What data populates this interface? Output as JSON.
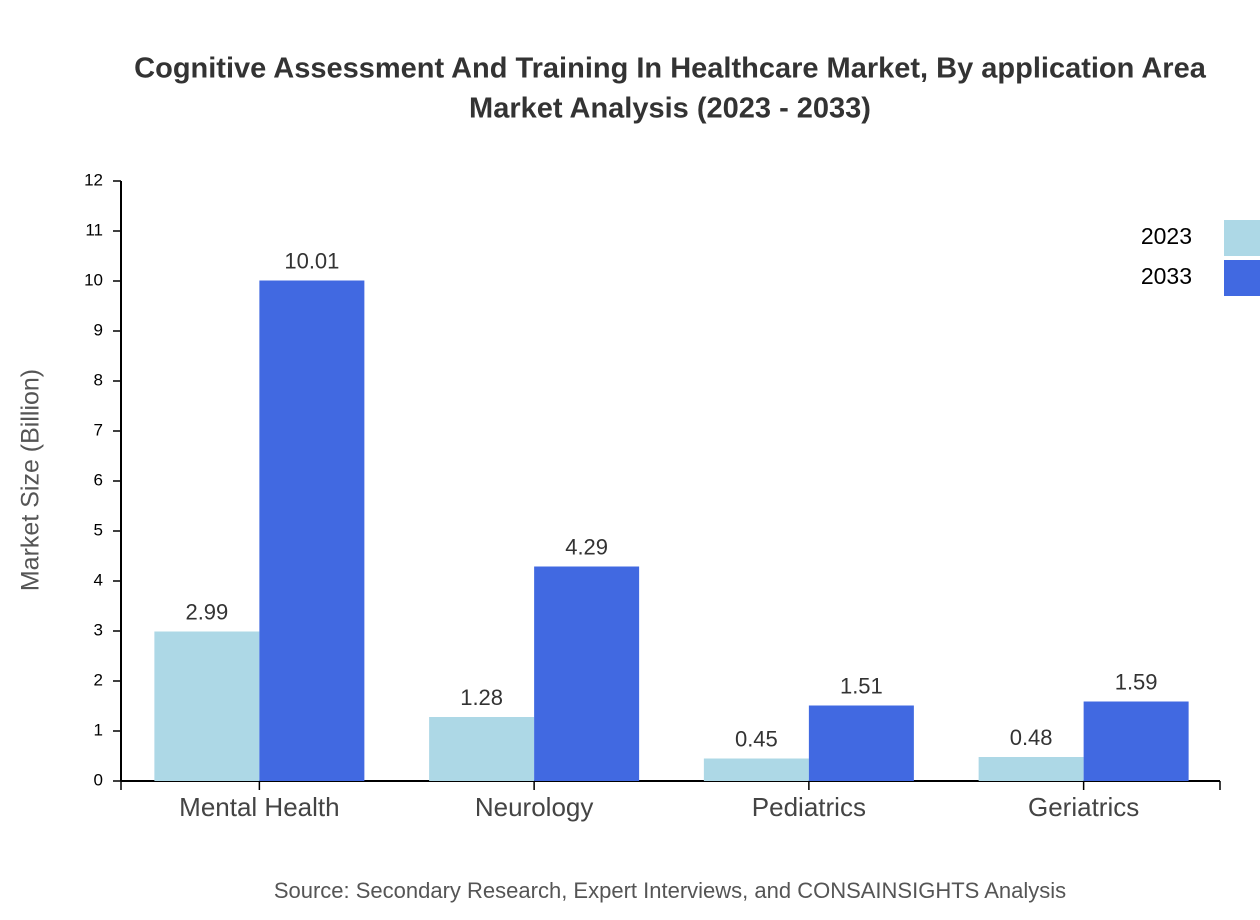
{
  "chart_data": {
    "type": "bar",
    "title": [
      "Cognitive Assessment And Training In Healthcare Market, By application Area",
      "Market Analysis (2023 - 2033)"
    ],
    "y_label": "Market Size (Billion)",
    "source": "Source: Secondary Research, Expert Interviews, and CONSAINSIGHTS Analysis",
    "categories": [
      "Mental Health",
      "Neurology",
      "Pediatrics",
      "Geriatrics"
    ],
    "series": [
      {
        "name": "2023",
        "color": "#add8e6",
        "values": [
          2.99,
          1.28,
          0.45,
          0.48
        ]
      },
      {
        "name": "2033",
        "color": "#4169e1",
        "values": [
          10.01,
          4.29,
          1.51,
          1.59
        ]
      }
    ],
    "ylim": [
      0,
      12
    ],
    "yticks": [
      0,
      1,
      2,
      3,
      4,
      5,
      6,
      7,
      8,
      9,
      10,
      11,
      12
    ],
    "legend": "top-right",
    "grid": false
  }
}
